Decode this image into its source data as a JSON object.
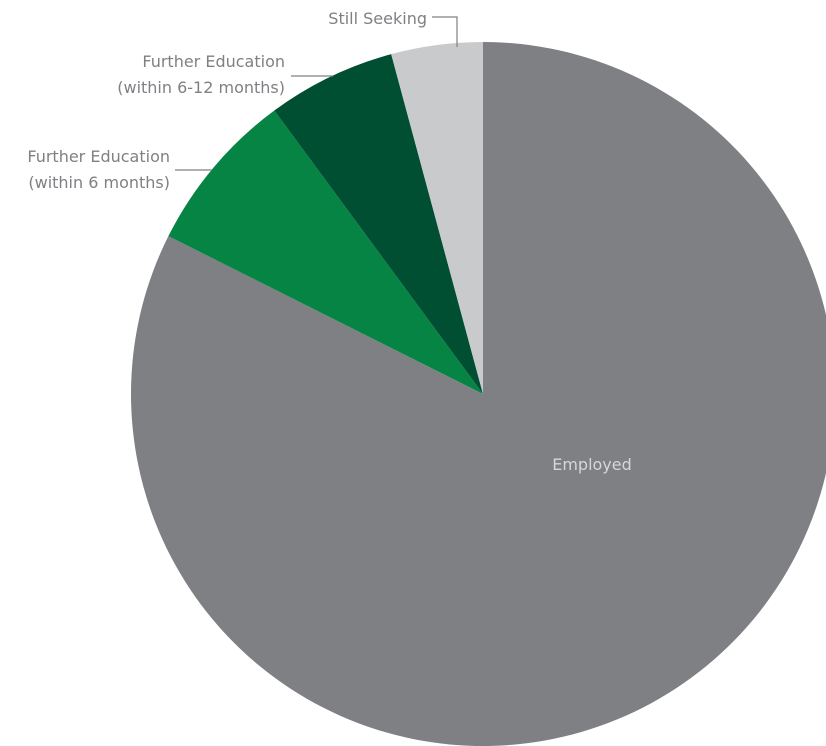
{
  "chart_data": {
    "type": "pie",
    "title": "",
    "start_angle_deg": 0,
    "direction": "clockwise",
    "slices": [
      {
        "label": "Employed",
        "value": 82.4,
        "color": "#7f8084",
        "label_color": "#d5d6d8"
      },
      {
        "label": "Further Education (within 6 months)",
        "label_lines": [
          "Further Education",
          "(within 6 months)"
        ],
        "value": 7.5,
        "color": "#068443"
      },
      {
        "label": "Further Education (within 6-12 months)",
        "label_lines": [
          "Further Education",
          "(within 6-12 months)"
        ],
        "value": 5.9,
        "color": "#004f32"
      },
      {
        "label": "Still Seeking",
        "label_lines": [
          "Still Seeking"
        ],
        "value": 4.2,
        "color": "#c9cacc"
      }
    ]
  }
}
